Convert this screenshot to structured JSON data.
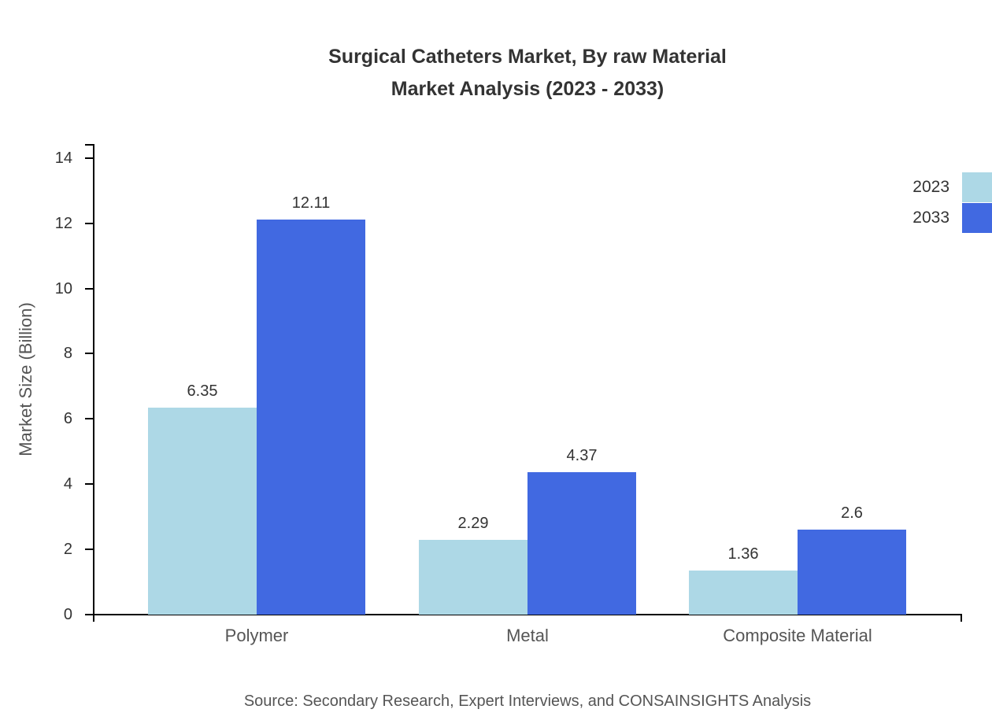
{
  "title": {
    "line1": "Surgical Catheters Market, By raw Material",
    "line2": "Market Analysis (2023 - 2033)"
  },
  "source": "Source: Secondary Research, Expert Interviews, and CONSAINSIGHTS Analysis",
  "chart_data": {
    "type": "bar",
    "title": "Surgical Catheters Market, By raw Material Market Analysis (2023 - 2033)",
    "categories": [
      "Polymer",
      "Metal",
      "Composite Material"
    ],
    "series": [
      {
        "name": "2023",
        "color": "#add8e6",
        "values": [
          6.35,
          2.29,
          1.36
        ]
      },
      {
        "name": "2033",
        "color": "#4169e1",
        "values": [
          12.11,
          4.37,
          2.6
        ]
      }
    ],
    "xlabel": "",
    "ylabel": "Market Size (Billion)",
    "ylim": [
      0,
      14.43
    ],
    "yticks": [
      0,
      2,
      4,
      6,
      8,
      10,
      12,
      14
    ],
    "grid": false,
    "legend_position": "top-right"
  }
}
